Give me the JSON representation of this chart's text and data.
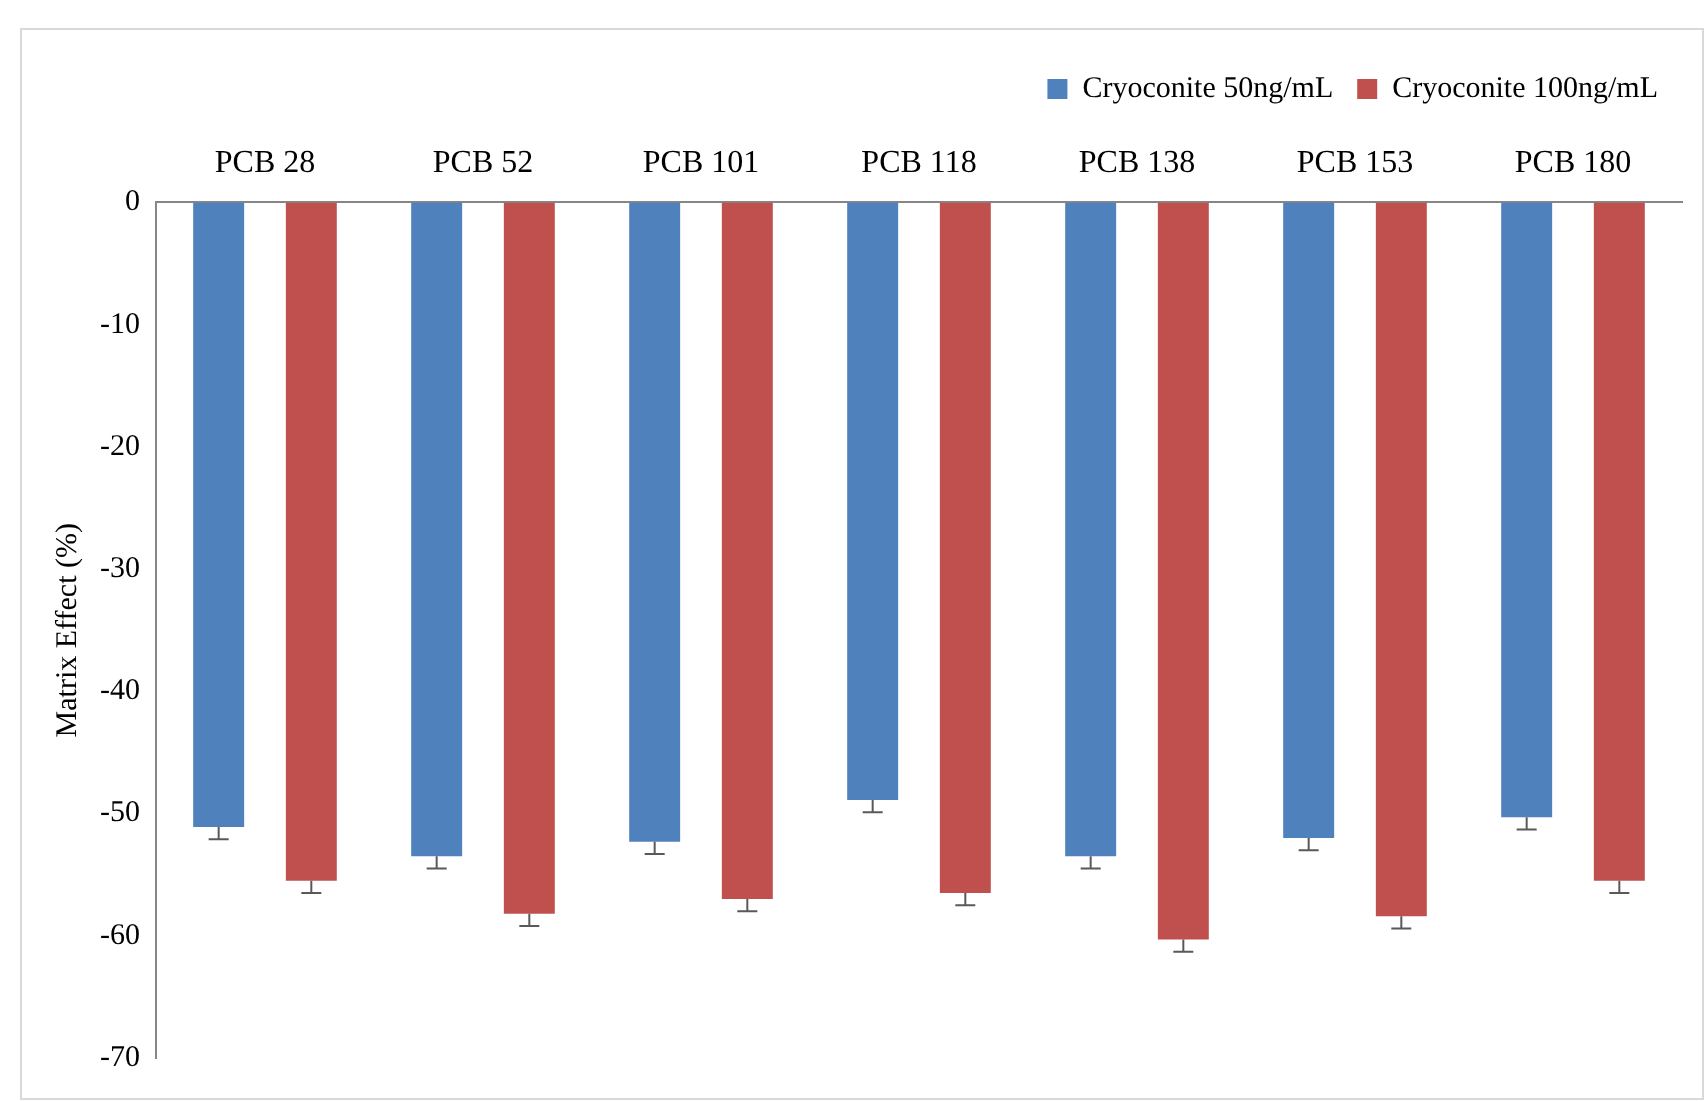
{
  "chart_data": {
    "type": "bar",
    "ylabel": "Matrix Effect (%)",
    "categories": [
      "PCB 28",
      "PCB 52",
      "PCB 101",
      "PCB 118",
      "PCB 138",
      "PCB 153",
      "PCB 180"
    ],
    "series": [
      {
        "name": "Cryoconite 50ng/mL",
        "color": "#4f81bd",
        "values": [
          -51.1,
          -53.5,
          -52.3,
          -48.9,
          -53.5,
          -52.0,
          -50.3
        ],
        "errors": [
          [
            -52.1,
            -51.1
          ],
          [
            -54.5,
            -53.5
          ],
          [
            -53.3,
            -52.3
          ],
          [
            -49.9,
            -48.9
          ],
          [
            -54.5,
            -53.5
          ],
          [
            -53.0,
            -52.0
          ],
          [
            -51.3,
            -50.3
          ]
        ]
      },
      {
        "name": "Cryoconite 100ng/mL",
        "color": "#c0504d",
        "values": [
          -55.5,
          -58.2,
          -57.0,
          -56.5,
          -60.3,
          -58.4,
          -55.5
        ],
        "errors": [
          [
            -56.5,
            -55.5
          ],
          [
            -59.2,
            -58.2
          ],
          [
            -58.0,
            -57.0
          ],
          [
            -57.5,
            -56.5
          ],
          [
            -61.3,
            -60.3
          ],
          [
            -59.4,
            -58.4
          ],
          [
            -56.5,
            -55.5
          ]
        ]
      }
    ],
    "ylim": [
      -70,
      0
    ],
    "yticks": [
      0,
      -10,
      -20,
      -30,
      -40,
      -50,
      -60,
      -70
    ],
    "grid": false,
    "legend": "top right"
  }
}
